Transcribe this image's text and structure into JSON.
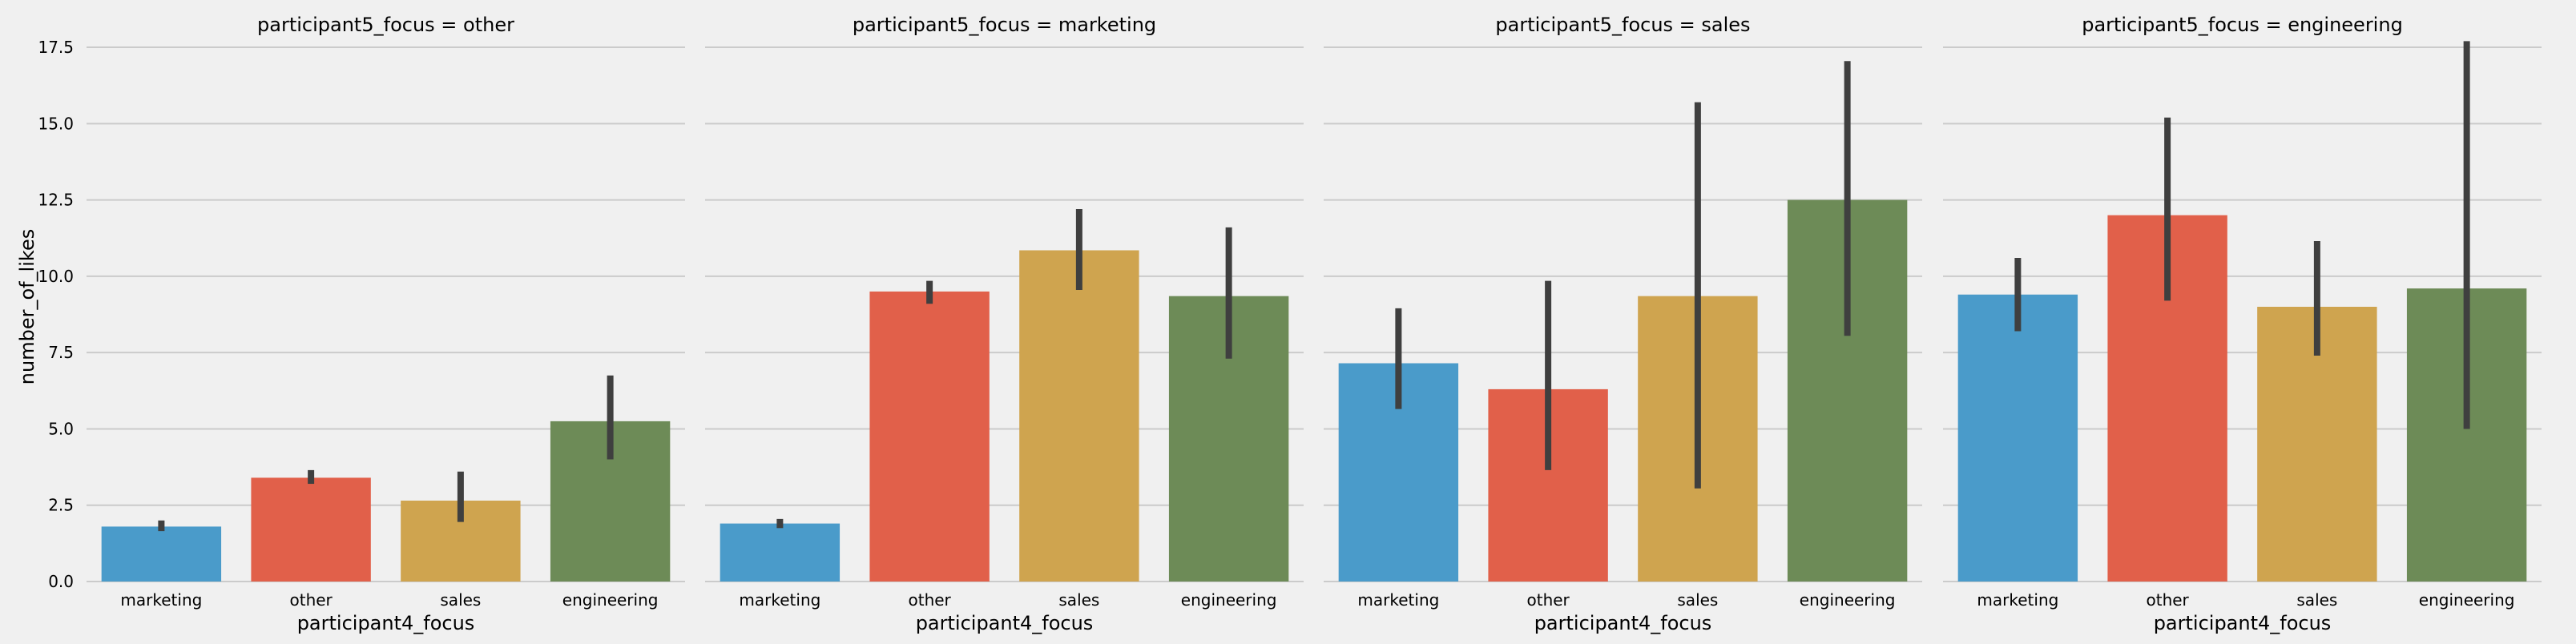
{
  "chart_data": {
    "type": "bar",
    "facet_var": "participant5_focus",
    "grid": true,
    "ylim": [
      0,
      18
    ],
    "yticks": [
      0.0,
      2.5,
      5.0,
      7.5,
      10.0,
      12.5,
      15.0,
      17.5
    ],
    "ytick_labels": [
      "0.0",
      "2.5",
      "5.0",
      "7.5",
      "10.0",
      "12.5",
      "15.0",
      "17.5"
    ],
    "ylabel": "number_of_likes",
    "xlabel": "participant4_focus",
    "colors": {
      "marketing": "#4a9bca",
      "other": "#e1604a",
      "sales": "#cfa44f",
      "engineering": "#6d8b57"
    },
    "panels": [
      {
        "title": "participant5_focus = other",
        "categories": [
          "marketing",
          "other",
          "sales",
          "engineering"
        ],
        "values": [
          1.8,
          3.4,
          2.65,
          5.25
        ],
        "err_low": [
          1.65,
          3.2,
          1.95,
          4.0
        ],
        "err_high": [
          2.0,
          3.65,
          3.6,
          6.75
        ]
      },
      {
        "title": "participant5_focus = marketing",
        "categories": [
          "marketing",
          "other",
          "sales",
          "engineering"
        ],
        "values": [
          1.9,
          9.5,
          10.85,
          9.35
        ],
        "err_low": [
          1.75,
          9.1,
          9.55,
          7.3
        ],
        "err_high": [
          2.05,
          9.85,
          12.2,
          11.6
        ]
      },
      {
        "title": "participant5_focus = sales",
        "categories": [
          "marketing",
          "other",
          "sales",
          "engineering"
        ],
        "values": [
          7.15,
          6.3,
          9.35,
          12.5
        ],
        "err_low": [
          5.65,
          3.65,
          3.05,
          8.05
        ],
        "err_high": [
          8.95,
          9.85,
          15.7,
          17.05
        ]
      },
      {
        "title": "participant5_focus = engineering",
        "categories": [
          "marketing",
          "other",
          "sales",
          "engineering"
        ],
        "values": [
          9.4,
          12.0,
          9.0,
          9.6
        ],
        "err_low": [
          8.2,
          9.2,
          7.4,
          5.0
        ],
        "err_high": [
          10.6,
          15.2,
          11.15,
          17.7
        ]
      }
    ]
  }
}
